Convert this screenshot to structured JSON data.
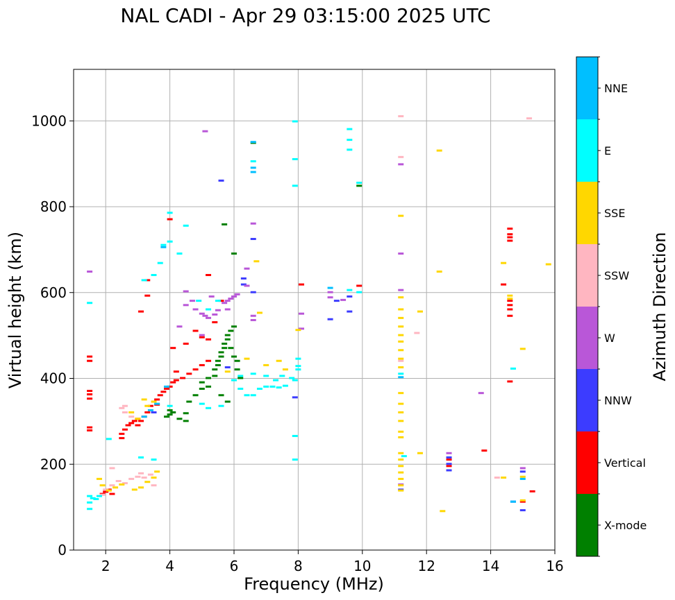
{
  "chart_data": {
    "type": "scatter",
    "title": "NAL CADI - Apr 29 03:15:00 2025 UTC",
    "xlabel": "Frequency (MHz)",
    "ylabel": "Virtual height (km)",
    "xlim": [
      1.0,
      16.0
    ],
    "ylim": [
      0,
      1120
    ],
    "xticks": [
      2,
      4,
      6,
      8,
      10,
      12,
      14,
      16
    ],
    "yticks": [
      0,
      200,
      400,
      600,
      800,
      1000
    ],
    "grid": true,
    "colorbar": {
      "label": "Azimuth Direction",
      "categories": [
        {
          "name": "X-mode",
          "color": "#008000"
        },
        {
          "name": "Vertical",
          "color": "#ff0000"
        },
        {
          "name": "NNW",
          "color": "#3c3cff"
        },
        {
          "name": "W",
          "color": "#b957d8"
        },
        {
          "name": "SSW",
          "color": "#ffb6c1"
        },
        {
          "name": "SSE",
          "color": "#ffd700"
        },
        {
          "name": "E",
          "color": "#00ffff"
        },
        {
          "name": "NNE",
          "color": "#00bfff"
        }
      ]
    },
    "series": [
      {
        "name": "X-mode",
        "points": [
          [
            4.0,
            315
          ],
          [
            4.0,
            325
          ],
          [
            3.9,
            310
          ],
          [
            4.1,
            320
          ],
          [
            4.3,
            305
          ],
          [
            4.5,
            300
          ],
          [
            4.5,
            318
          ],
          [
            4.6,
            345
          ],
          [
            4.8,
            360
          ],
          [
            5.0,
            375
          ],
          [
            5.0,
            390
          ],
          [
            5.2,
            380
          ],
          [
            5.2,
            400
          ],
          [
            5.4,
            405
          ],
          [
            5.4,
            420
          ],
          [
            5.5,
            430
          ],
          [
            5.5,
            440
          ],
          [
            5.6,
            450
          ],
          [
            5.6,
            460
          ],
          [
            5.7,
            470
          ],
          [
            5.7,
            480
          ],
          [
            5.8,
            490
          ],
          [
            5.8,
            500
          ],
          [
            5.9,
            510
          ],
          [
            5.9,
            470
          ],
          [
            6.0,
            520
          ],
          [
            6.0,
            450
          ],
          [
            6.1,
            440
          ],
          [
            6.1,
            420
          ],
          [
            6.2,
            400
          ],
          [
            5.6,
            360
          ],
          [
            5.8,
            345
          ],
          [
            6.6,
            948
          ],
          [
            9.9,
            848
          ],
          [
            5.7,
            758
          ],
          [
            6.0,
            690
          ]
        ]
      },
      {
        "name": "Vertical",
        "points": [
          [
            1.5,
            450
          ],
          [
            1.5,
            440
          ],
          [
            1.5,
            370
          ],
          [
            1.5,
            362
          ],
          [
            1.5,
            352
          ],
          [
            1.5,
            285
          ],
          [
            1.5,
            278
          ],
          [
            2.5,
            270
          ],
          [
            2.5,
            260
          ],
          [
            2.6,
            280
          ],
          [
            2.7,
            290
          ],
          [
            2.8,
            295
          ],
          [
            2.9,
            300
          ],
          [
            3.0,
            290
          ],
          [
            3.1,
            300
          ],
          [
            3.2,
            310
          ],
          [
            3.3,
            320
          ],
          [
            3.4,
            335
          ],
          [
            3.5,
            345
          ],
          [
            3.6,
            350
          ],
          [
            3.7,
            360
          ],
          [
            3.8,
            368
          ],
          [
            3.9,
            375
          ],
          [
            4.0,
            380
          ],
          [
            4.1,
            390
          ],
          [
            4.2,
            395
          ],
          [
            4.4,
            400
          ],
          [
            4.6,
            410
          ],
          [
            4.8,
            420
          ],
          [
            5.0,
            430
          ],
          [
            5.2,
            440
          ],
          [
            1.9,
            130
          ],
          [
            2.0,
            135
          ],
          [
            2.1,
            140
          ],
          [
            2.2,
            130
          ],
          [
            3.1,
            555
          ],
          [
            3.3,
            628
          ],
          [
            3.3,
            592
          ],
          [
            4.0,
            770
          ],
          [
            4.1,
            470
          ],
          [
            4.5,
            480
          ],
          [
            4.8,
            510
          ],
          [
            5.0,
            495
          ],
          [
            5.2,
            490
          ],
          [
            5.4,
            530
          ],
          [
            5.2,
            640
          ],
          [
            5.6,
            580
          ],
          [
            8.1,
            618
          ],
          [
            9.9,
            615
          ],
          [
            13.8,
            231
          ],
          [
            14.4,
            618
          ],
          [
            14.6,
            748
          ],
          [
            14.6,
            735
          ],
          [
            14.6,
            728
          ],
          [
            14.6,
            720
          ],
          [
            14.6,
            580
          ],
          [
            14.6,
            570
          ],
          [
            14.6,
            560
          ],
          [
            14.6,
            545
          ],
          [
            14.6,
            392
          ],
          [
            15.0,
            112
          ],
          [
            15.3,
            136
          ],
          [
            12.7,
            210
          ],
          [
            12.7,
            195
          ],
          [
            4.2,
            415
          ],
          [
            3.0,
            305
          ],
          [
            3.6,
            338
          ]
        ]
      },
      {
        "name": "NNW",
        "points": [
          [
            5.6,
            860
          ],
          [
            6.6,
            724
          ],
          [
            6.3,
            632
          ],
          [
            6.3,
            618
          ],
          [
            9.2,
            580
          ],
          [
            9.6,
            590
          ],
          [
            9.6,
            555
          ],
          [
            9.0,
            537
          ],
          [
            7.9,
            355
          ],
          [
            12.7,
            185
          ],
          [
            12.7,
            200
          ],
          [
            12.7,
            215
          ],
          [
            15.0,
            182
          ],
          [
            15.0,
            92
          ],
          [
            14.7,
            112
          ],
          [
            11.2,
            140
          ],
          [
            5.8,
            425
          ],
          [
            6.6,
            600
          ],
          [
            3.5,
            320
          ]
        ]
      },
      {
        "name": "W",
        "points": [
          [
            4.5,
            602
          ],
          [
            4.5,
            570
          ],
          [
            4.7,
            580
          ],
          [
            4.8,
            560
          ],
          [
            5.0,
            550
          ],
          [
            5.1,
            545
          ],
          [
            5.2,
            540
          ],
          [
            5.4,
            548
          ],
          [
            5.5,
            558
          ],
          [
            5.7,
            575
          ],
          [
            5.8,
            580
          ],
          [
            5.9,
            585
          ],
          [
            6.0,
            590
          ],
          [
            6.1,
            595
          ],
          [
            5.8,
            560
          ],
          [
            6.4,
            655
          ],
          [
            6.6,
            760
          ],
          [
            6.6,
            545
          ],
          [
            6.6,
            535
          ],
          [
            6.4,
            615
          ],
          [
            4.3,
            520
          ],
          [
            5.0,
            500
          ],
          [
            9.0,
            600
          ],
          [
            9.0,
            588
          ],
          [
            9.4,
            582
          ],
          [
            11.2,
            898
          ],
          [
            11.2,
            690
          ],
          [
            11.2,
            605
          ],
          [
            11.2,
            152
          ],
          [
            12.7,
            225
          ],
          [
            13.7,
            365
          ],
          [
            15.0,
            190
          ],
          [
            5.1,
            975
          ],
          [
            8.1,
            550
          ],
          [
            8.1,
            515
          ],
          [
            1.5,
            648
          ],
          [
            5.3,
            590
          ]
        ]
      },
      {
        "name": "SSW",
        "points": [
          [
            1.9,
            128
          ],
          [
            2.0,
            140
          ],
          [
            2.2,
            150
          ],
          [
            2.4,
            160
          ],
          [
            2.6,
            155
          ],
          [
            2.8,
            165
          ],
          [
            3.0,
            170
          ],
          [
            3.1,
            178
          ],
          [
            3.2,
            168
          ],
          [
            3.4,
            175
          ],
          [
            3.5,
            150
          ],
          [
            2.5,
            330
          ],
          [
            2.6,
            320
          ],
          [
            2.8,
            310
          ],
          [
            11.2,
            1010
          ],
          [
            11.2,
            915
          ],
          [
            11.2,
            440
          ],
          [
            11.7,
            505
          ],
          [
            15.2,
            1005
          ],
          [
            14.2,
            168
          ],
          [
            2.6,
            335
          ],
          [
            2.2,
            190
          ]
        ]
      },
      {
        "name": "SSE",
        "points": [
          [
            11.2,
            560
          ],
          [
            11.2,
            540
          ],
          [
            11.2,
            520
          ],
          [
            11.2,
            500
          ],
          [
            11.2,
            485
          ],
          [
            11.2,
            465
          ],
          [
            11.2,
            445
          ],
          [
            11.2,
            425
          ],
          [
            11.2,
            365
          ],
          [
            11.2,
            340
          ],
          [
            11.2,
            320
          ],
          [
            11.2,
            300
          ],
          [
            11.2,
            275
          ],
          [
            11.2,
            262
          ],
          [
            11.2,
            225
          ],
          [
            11.2,
            210
          ],
          [
            11.2,
            195
          ],
          [
            11.2,
            180
          ],
          [
            11.2,
            165
          ],
          [
            11.2,
            150
          ],
          [
            11.2,
            138
          ],
          [
            11.2,
            778
          ],
          [
            11.2,
            588
          ],
          [
            11.8,
            555
          ],
          [
            11.8,
            225
          ],
          [
            12.4,
            930
          ],
          [
            12.4,
            648
          ],
          [
            12.5,
            90
          ],
          [
            14.4,
            668
          ],
          [
            14.4,
            168
          ],
          [
            14.6,
            592
          ],
          [
            14.6,
            585
          ],
          [
            15.0,
            468
          ],
          [
            15.0,
            170
          ],
          [
            15.0,
            115
          ],
          [
            15.8,
            665
          ],
          [
            6.4,
            445
          ],
          [
            6.8,
            552
          ],
          [
            6.7,
            672
          ],
          [
            7.0,
            430
          ],
          [
            7.4,
            440
          ],
          [
            7.6,
            420
          ],
          [
            8.0,
            512
          ],
          [
            1.8,
            165
          ],
          [
            1.9,
            150
          ],
          [
            2.1,
            138
          ],
          [
            2.3,
            145
          ],
          [
            2.5,
            152
          ],
          [
            2.9,
            140
          ],
          [
            3.1,
            145
          ],
          [
            3.3,
            158
          ],
          [
            3.6,
            182
          ],
          [
            3.5,
            168
          ],
          [
            3.3,
            335
          ],
          [
            3.2,
            350
          ],
          [
            3.5,
            345
          ],
          [
            2.8,
            320
          ],
          [
            3.0,
            305
          ],
          [
            5.8,
            415
          ]
        ]
      },
      {
        "name": "E",
        "points": [
          [
            1.5,
            575
          ],
          [
            1.5,
            125
          ],
          [
            1.5,
            110
          ],
          [
            1.6,
            120
          ],
          [
            1.7,
            118
          ],
          [
            1.8,
            125
          ],
          [
            1.5,
            95
          ],
          [
            2.1,
            258
          ],
          [
            3.2,
            628
          ],
          [
            3.5,
            640
          ],
          [
            3.7,
            668
          ],
          [
            3.8,
            710
          ],
          [
            4.0,
            785
          ],
          [
            4.0,
            718
          ],
          [
            4.3,
            690
          ],
          [
            4.5,
            755
          ],
          [
            4.9,
            580
          ],
          [
            5.2,
            560
          ],
          [
            5.5,
            580
          ],
          [
            6.0,
            395
          ],
          [
            6.2,
            375
          ],
          [
            6.4,
            360
          ],
          [
            6.6,
            360
          ],
          [
            6.8,
            375
          ],
          [
            7.0,
            380
          ],
          [
            7.2,
            380
          ],
          [
            7.4,
            378
          ],
          [
            7.6,
            382
          ],
          [
            7.8,
            400
          ],
          [
            7.9,
            395
          ],
          [
            8.0,
            420
          ],
          [
            8.0,
            445
          ],
          [
            8.0,
            428
          ],
          [
            7.9,
            265
          ],
          [
            7.9,
            210
          ],
          [
            7.9,
            998
          ],
          [
            7.9,
            910
          ],
          [
            7.9,
            848
          ],
          [
            9.6,
            980
          ],
          [
            9.6,
            955
          ],
          [
            9.6,
            932
          ],
          [
            9.9,
            855
          ],
          [
            9.9,
            600
          ],
          [
            9.6,
            605
          ],
          [
            6.6,
            905
          ],
          [
            11.2,
            410
          ],
          [
            11.3,
            218
          ],
          [
            14.7,
            422
          ],
          [
            3.1,
            215
          ],
          [
            3.5,
            210
          ],
          [
            4.0,
            335
          ],
          [
            5.0,
            340
          ],
          [
            5.2,
            330
          ],
          [
            5.6,
            335
          ],
          [
            6.2,
            405
          ],
          [
            6.6,
            410
          ],
          [
            7.0,
            405
          ],
          [
            7.3,
            395
          ],
          [
            7.5,
            405
          ]
        ]
      },
      {
        "name": "NNE",
        "points": [
          [
            6.6,
            950
          ],
          [
            6.6,
            890
          ],
          [
            6.6,
            880
          ],
          [
            3.8,
            705
          ],
          [
            3.9,
            380
          ],
          [
            3.6,
            340
          ],
          [
            3.4,
            325
          ],
          [
            3.2,
            310
          ],
          [
            11.2,
            402
          ],
          [
            14.7,
            112
          ],
          [
            9.0,
            610
          ],
          [
            15.0,
            165
          ]
        ]
      }
    ]
  }
}
